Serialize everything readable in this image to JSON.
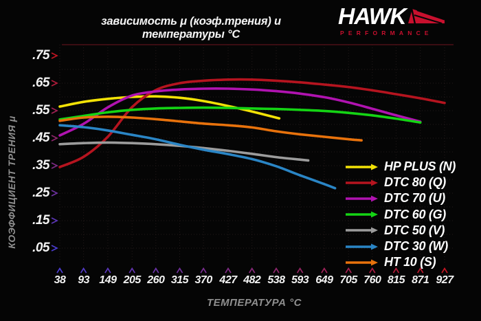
{
  "header": {
    "logo": {
      "brand": "HAWK",
      "sub": "PERFORMANCE",
      "brand_color": "#c8102e"
    }
  },
  "style": {
    "background": "#050505",
    "text_white": "#f2f2f2",
    "text_gray": "#8f8f8f",
    "grid_color": "#241a1a",
    "axis_hot_color": "#c21522",
    "axis_cold_color": "#4b3cd0",
    "top_border_color": "#4d1016"
  },
  "chart_data": {
    "type": "line",
    "title": "зависимость μ (коэф.трения) и температуры °C",
    "xlabel": "ТЕМПЕРАТУРА °C",
    "ylabel": "КОЭФФИЦИЕНТ ТРЕНИЯ μ",
    "x_ticks": [
      38,
      93,
      149,
      205,
      260,
      315,
      370,
      427,
      482,
      538,
      593,
      649,
      705,
      760,
      815,
      871,
      927
    ],
    "y_tick_values": [
      0.75,
      0.65,
      0.55,
      0.45,
      0.35,
      0.25,
      0.15,
      0.05
    ],
    "y_tick_labels": [
      ".75",
      ".65",
      ".55",
      ".45",
      ".35",
      ".25",
      ".15",
      ".05"
    ],
    "xlim": [
      38,
      927
    ],
    "ylim": [
      0,
      0.8
    ],
    "grid": "dotted",
    "legend_position": "right-bottom",
    "series": [
      {
        "name": "HP PLUS (N)",
        "color": "#f2e206",
        "points": [
          [
            38,
            0.565
          ],
          [
            93,
            0.582
          ],
          [
            149,
            0.593
          ],
          [
            205,
            0.6
          ],
          [
            260,
            0.602
          ],
          [
            315,
            0.597
          ],
          [
            370,
            0.585
          ],
          [
            427,
            0.567
          ],
          [
            482,
            0.547
          ],
          [
            545,
            0.522
          ]
        ]
      },
      {
        "name": "DTC 80 (Q)",
        "color": "#b5141f",
        "points": [
          [
            38,
            0.345
          ],
          [
            93,
            0.382
          ],
          [
            149,
            0.455
          ],
          [
            205,
            0.563
          ],
          [
            260,
            0.625
          ],
          [
            315,
            0.65
          ],
          [
            370,
            0.659
          ],
          [
            427,
            0.663
          ],
          [
            482,
            0.663
          ],
          [
            538,
            0.659
          ],
          [
            593,
            0.653
          ],
          [
            649,
            0.645
          ],
          [
            705,
            0.636
          ],
          [
            760,
            0.624
          ],
          [
            815,
            0.61
          ],
          [
            871,
            0.595
          ],
          [
            927,
            0.578
          ]
        ]
      },
      {
        "name": "DTC 70 (U)",
        "color": "#b013b0",
        "points": [
          [
            38,
            0.46
          ],
          [
            93,
            0.502
          ],
          [
            149,
            0.562
          ],
          [
            205,
            0.605
          ],
          [
            260,
            0.62
          ],
          [
            315,
            0.627
          ],
          [
            370,
            0.63
          ],
          [
            427,
            0.63
          ],
          [
            482,
            0.627
          ],
          [
            538,
            0.621
          ],
          [
            593,
            0.612
          ],
          [
            649,
            0.599
          ],
          [
            705,
            0.58
          ],
          [
            760,
            0.557
          ],
          [
            815,
            0.533
          ],
          [
            871,
            0.51
          ]
        ]
      },
      {
        "name": "DTC 60 (G)",
        "color": "#14d414",
        "points": [
          [
            38,
            0.518
          ],
          [
            93,
            0.531
          ],
          [
            149,
            0.544
          ],
          [
            205,
            0.553
          ],
          [
            260,
            0.558
          ],
          [
            315,
            0.56
          ],
          [
            370,
            0.561
          ],
          [
            427,
            0.56
          ],
          [
            482,
            0.558
          ],
          [
            538,
            0.556
          ],
          [
            593,
            0.553
          ],
          [
            649,
            0.549
          ],
          [
            705,
            0.542
          ],
          [
            760,
            0.533
          ],
          [
            815,
            0.521
          ],
          [
            871,
            0.507
          ]
        ]
      },
      {
        "name": "DTC 50 (V)",
        "color": "#9c9c9c",
        "points": [
          [
            38,
            0.428
          ],
          [
            93,
            0.432
          ],
          [
            149,
            0.434
          ],
          [
            205,
            0.432
          ],
          [
            260,
            0.428
          ],
          [
            315,
            0.422
          ],
          [
            370,
            0.414
          ],
          [
            427,
            0.404
          ],
          [
            482,
            0.393
          ],
          [
            538,
            0.381
          ],
          [
            593,
            0.372
          ],
          [
            612,
            0.369
          ]
        ]
      },
      {
        "name": "DTC 30 (W)",
        "color": "#2a85c5",
        "points": [
          [
            38,
            0.497
          ],
          [
            93,
            0.49
          ],
          [
            149,
            0.478
          ],
          [
            205,
            0.462
          ],
          [
            260,
            0.446
          ],
          [
            315,
            0.426
          ],
          [
            370,
            0.408
          ],
          [
            427,
            0.392
          ],
          [
            482,
            0.374
          ],
          [
            538,
            0.348
          ],
          [
            593,
            0.315
          ],
          [
            649,
            0.283
          ],
          [
            674,
            0.268
          ]
        ]
      },
      {
        "name": "HT 10 (S)",
        "color": "#e8720c",
        "points": [
          [
            38,
            0.513
          ],
          [
            93,
            0.525
          ],
          [
            149,
            0.528
          ],
          [
            205,
            0.525
          ],
          [
            260,
            0.519
          ],
          [
            315,
            0.511
          ],
          [
            370,
            0.503
          ],
          [
            427,
            0.497
          ],
          [
            482,
            0.489
          ],
          [
            538,
            0.475
          ],
          [
            593,
            0.464
          ],
          [
            649,
            0.455
          ],
          [
            705,
            0.446
          ],
          [
            735,
            0.442
          ]
        ]
      }
    ]
  }
}
